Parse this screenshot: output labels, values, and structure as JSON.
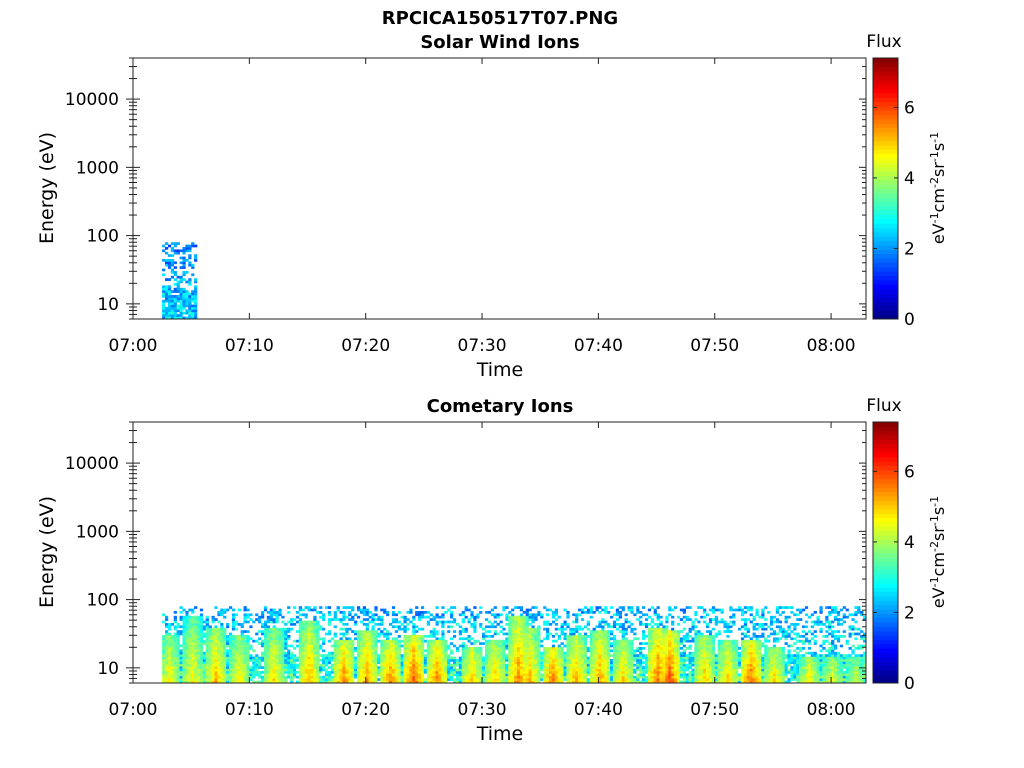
{
  "figure": {
    "title": "RPCICA150517T07.PNG"
  },
  "chart_data": [
    {
      "type": "heatmap",
      "title": "Solar Wind Ions",
      "xlabel": "Time",
      "ylabel": "Energy (eV)",
      "yscale": "log",
      "xlim": [
        "07:00",
        "08:03"
      ],
      "ylim": [
        6,
        40000
      ],
      "x_ticks": [
        "07:00",
        "07:10",
        "07:20",
        "07:30",
        "07:40",
        "07:50",
        "08:00"
      ],
      "y_ticks": [
        {
          "value": 10,
          "label": "10"
        },
        {
          "value": 100,
          "label": "100"
        },
        {
          "value": 1000,
          "label": "1000"
        },
        {
          "value": 10000,
          "label": "10000"
        }
      ],
      "colorbar": {
        "label": "Flux",
        "unit_label": "eV-1cm-2sr-1s-1",
        "range": [
          0,
          7.4
        ],
        "ticks": [
          "0",
          "2",
          "4",
          "6"
        ],
        "colormap": "jet"
      },
      "activity": [
        {
          "start": "07:02:30",
          "end": "07:05:30",
          "e_max": 80,
          "intensity": 0.35
        }
      ]
    },
    {
      "type": "heatmap",
      "title": "Cometary Ions",
      "xlabel": "Time",
      "ylabel": "Energy (eV)",
      "yscale": "log",
      "xlim": [
        "07:00",
        "08:03"
      ],
      "ylim": [
        6,
        40000
      ],
      "x_ticks": [
        "07:00",
        "07:10",
        "07:20",
        "07:30",
        "07:40",
        "07:50",
        "08:00"
      ],
      "y_ticks": [
        {
          "value": 10,
          "label": "10"
        },
        {
          "value": 100,
          "label": "100"
        },
        {
          "value": 1000,
          "label": "1000"
        },
        {
          "value": 10000,
          "label": "10000"
        }
      ],
      "colorbar": {
        "label": "Flux",
        "unit_label": "eV-1cm-2sr-1s-1",
        "range": [
          0,
          7.4
        ],
        "ticks": [
          "0",
          "2",
          "4",
          "6"
        ],
        "colormap": "jet"
      },
      "activity": [
        {
          "start": "07:02:30",
          "end": "08:03:00",
          "e_max": 80,
          "intensity": 0.45
        }
      ],
      "hotspots": [
        {
          "time": "07:03",
          "e_top": 30,
          "intensity": 0.75
        },
        {
          "time": "07:05",
          "e_top": 60,
          "intensity": 0.7
        },
        {
          "time": "07:07",
          "e_top": 40,
          "intensity": 0.8
        },
        {
          "time": "07:09",
          "e_top": 30,
          "intensity": 0.75
        },
        {
          "time": "07:12",
          "e_top": 40,
          "intensity": 0.75
        },
        {
          "time": "07:15",
          "e_top": 50,
          "intensity": 0.8
        },
        {
          "time": "07:18",
          "e_top": 25,
          "intensity": 0.9
        },
        {
          "time": "07:20",
          "e_top": 35,
          "intensity": 0.85
        },
        {
          "time": "07:22",
          "e_top": 25,
          "intensity": 0.9
        },
        {
          "time": "07:24",
          "e_top": 30,
          "intensity": 0.95
        },
        {
          "time": "07:26",
          "e_top": 25,
          "intensity": 0.9
        },
        {
          "time": "07:29",
          "e_top": 20,
          "intensity": 0.85
        },
        {
          "time": "07:31",
          "e_top": 25,
          "intensity": 0.8
        },
        {
          "time": "07:33",
          "e_top": 60,
          "intensity": 0.85
        },
        {
          "time": "07:34",
          "e_top": 40,
          "intensity": 0.8
        },
        {
          "time": "07:36",
          "e_top": 20,
          "intensity": 0.95
        },
        {
          "time": "07:38",
          "e_top": 30,
          "intensity": 0.85
        },
        {
          "time": "07:40",
          "e_top": 35,
          "intensity": 0.85
        },
        {
          "time": "07:42",
          "e_top": 25,
          "intensity": 0.8
        },
        {
          "time": "07:45",
          "e_top": 40,
          "intensity": 0.9
        },
        {
          "time": "07:46",
          "e_top": 35,
          "intensity": 0.95
        },
        {
          "time": "07:49",
          "e_top": 30,
          "intensity": 0.8
        },
        {
          "time": "07:51",
          "e_top": 25,
          "intensity": 0.8
        },
        {
          "time": "07:53",
          "e_top": 25,
          "intensity": 0.95
        },
        {
          "time": "07:55",
          "e_top": 20,
          "intensity": 0.8
        },
        {
          "time": "07:58",
          "e_top": 15,
          "intensity": 0.8
        },
        {
          "time": "08:00",
          "e_top": 15,
          "intensity": 0.75
        },
        {
          "time": "08:02",
          "e_top": 15,
          "intensity": 0.7
        }
      ]
    }
  ]
}
